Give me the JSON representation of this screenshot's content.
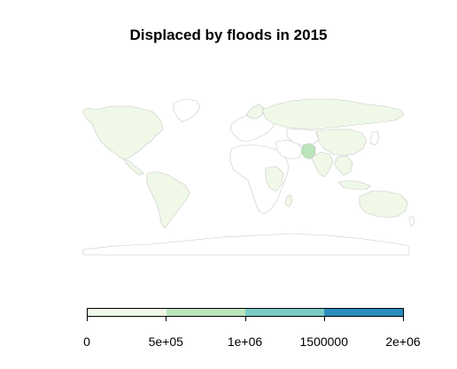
{
  "title": "Displaced by floods in 2015",
  "legend": {
    "colors": [
      "#f0f9e8",
      "#bae4bc",
      "#7bccc4",
      "#2b8cbe"
    ],
    "breaks": [
      0,
      500000,
      1000000,
      1500000,
      2000000
    ],
    "tick_labels": [
      "0",
      "5e+05",
      "1e+06",
      "1500000",
      "2e+06"
    ]
  },
  "map_colors": {
    "low": "#f0f9e8",
    "medium": "#bae4bc",
    "border": "#c8c8c8",
    "no_data": "#ffffff"
  }
}
